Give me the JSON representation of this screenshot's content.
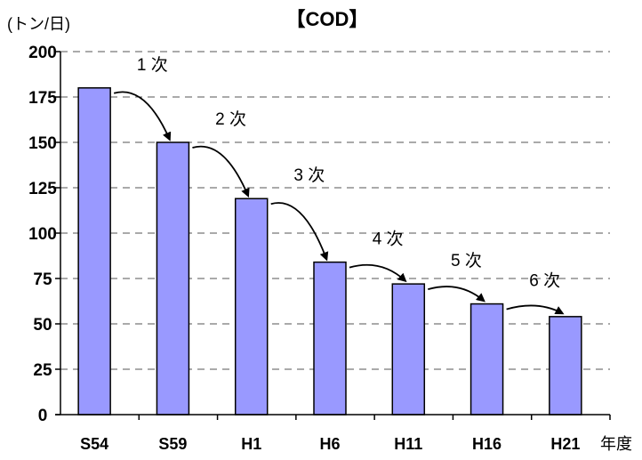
{
  "chart_data": {
    "type": "bar",
    "title": "【COD】",
    "ylabel": "(トン/日)",
    "xlabel": "年度",
    "ylim": [
      0,
      200
    ],
    "yticks": [
      0,
      25,
      50,
      75,
      100,
      125,
      150,
      175,
      200
    ],
    "categories": [
      "S54",
      "S59",
      "H1",
      "H6",
      "H11",
      "H16",
      "H21"
    ],
    "values": [
      180,
      150,
      119,
      84,
      72,
      61,
      54
    ],
    "grid": true,
    "bar_color": "#9999ff",
    "annotations": [
      "1 次",
      "2 次",
      "3 次",
      "4 次",
      "5 次",
      "6 次"
    ]
  }
}
